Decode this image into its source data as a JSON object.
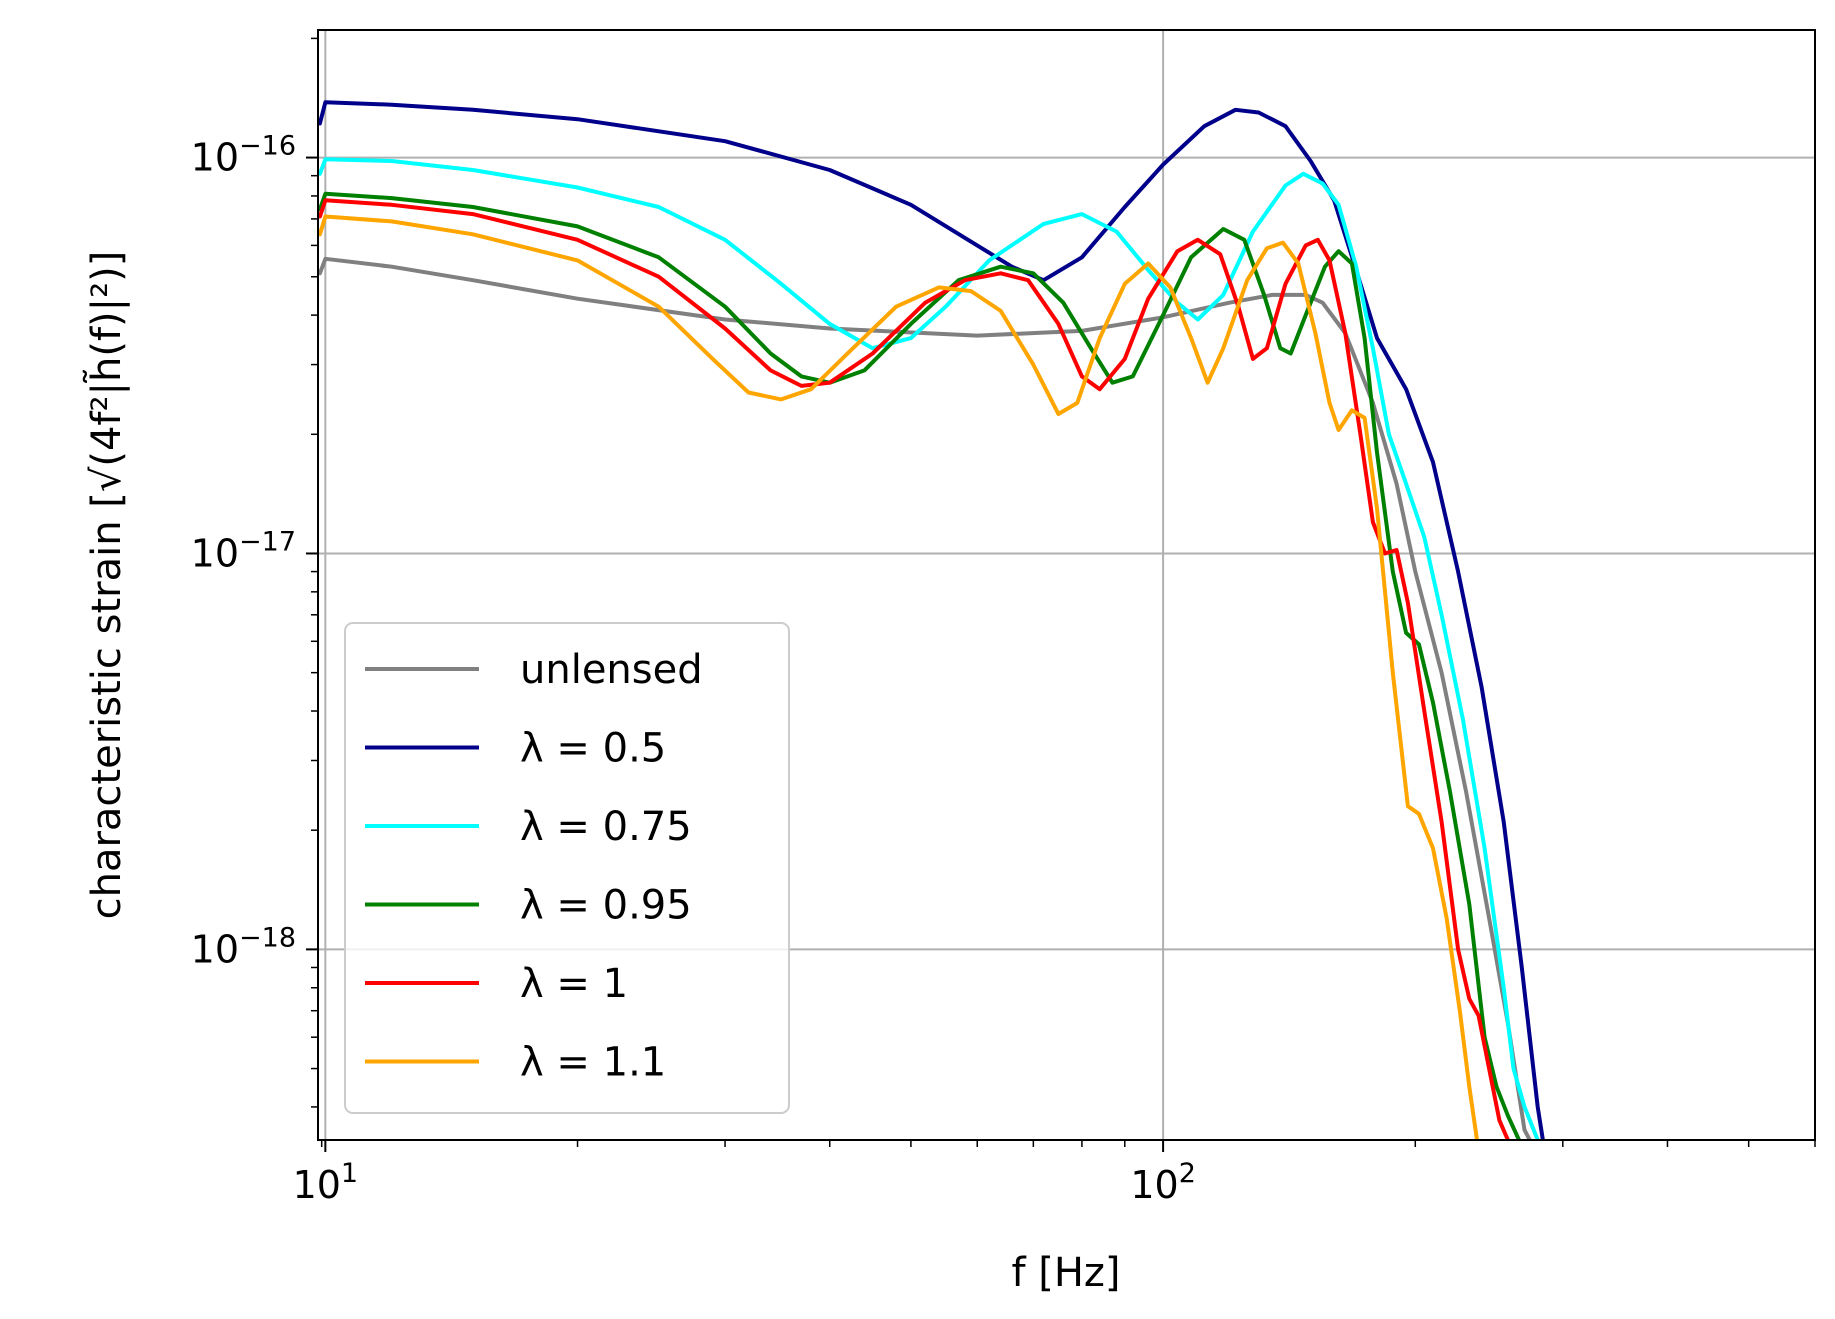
{
  "chart_data": {
    "type": "line",
    "xscale": "log",
    "yscale": "log",
    "xlim": [
      9.8,
      600
    ],
    "ylim": [
      3.3e-19,
      2.1e-16
    ],
    "grid": true,
    "xlabel": "f [Hz]",
    "ylabel": "characteristic strain [√(4f²|h̃(f)|²)]",
    "x_ticks": [
      {
        "value": 10,
        "base": "10",
        "exp": "1"
      },
      {
        "value": 100,
        "base": "10",
        "exp": "2"
      }
    ],
    "y_ticks": [
      {
        "value": 1e-16,
        "base": "10",
        "exp": "−16"
      },
      {
        "value": 1e-17,
        "base": "10",
        "exp": "−17"
      },
      {
        "value": 1e-18,
        "base": "10",
        "exp": "−18"
      }
    ],
    "legend_position": "lower-left",
    "series": [
      {
        "name": "unlensed",
        "color": "#808080",
        "points": [
          [
            9.85,
            5.1e-17
          ],
          [
            10,
            5.55e-17
          ],
          [
            12,
            5.3e-17
          ],
          [
            15,
            4.9e-17
          ],
          [
            20,
            4.4e-17
          ],
          [
            30,
            3.9e-17
          ],
          [
            40,
            3.7e-17
          ],
          [
            60,
            3.55e-17
          ],
          [
            80,
            3.65e-17
          ],
          [
            100,
            3.95e-17
          ],
          [
            120,
            4.3e-17
          ],
          [
            135,
            4.5e-17
          ],
          [
            148,
            4.5e-17
          ],
          [
            155,
            4.3e-17
          ],
          [
            165,
            3.6e-17
          ],
          [
            178,
            2.4e-17
          ],
          [
            190,
            1.5e-17
          ],
          [
            200,
            9e-18
          ],
          [
            215,
            5e-18
          ],
          [
            230,
            2.5e-18
          ],
          [
            245,
            1.2e-18
          ],
          [
            258,
            6.5e-19
          ],
          [
            270,
            3.5e-19
          ],
          [
            274,
            3.3e-19
          ]
        ]
      },
      {
        "name": "λ = 0.5",
        "color": "#00008b",
        "points": [
          [
            9.85,
            1.22e-16
          ],
          [
            10,
            1.38e-16
          ],
          [
            12,
            1.36e-16
          ],
          [
            15,
            1.32e-16
          ],
          [
            20,
            1.25e-16
          ],
          [
            30,
            1.1e-16
          ],
          [
            40,
            9.3e-17
          ],
          [
            50,
            7.6e-17
          ],
          [
            60,
            6e-17
          ],
          [
            66,
            5.3e-17
          ],
          [
            72,
            4.9e-17
          ],
          [
            80,
            5.6e-17
          ],
          [
            90,
            7.5e-17
          ],
          [
            100,
            9.6e-17
          ],
          [
            112,
            1.2e-16
          ],
          [
            122,
            1.32e-16
          ],
          [
            130,
            1.3e-16
          ],
          [
            140,
            1.2e-16
          ],
          [
            150,
            9.8e-17
          ],
          [
            160,
            7.8e-17
          ],
          [
            170,
            5.2e-17
          ],
          [
            180,
            3.5e-17
          ],
          [
            195,
            2.6e-17
          ],
          [
            210,
            1.7e-17
          ],
          [
            225,
            9e-18
          ],
          [
            240,
            4.6e-18
          ],
          [
            255,
            2.1e-18
          ],
          [
            268,
            9e-19
          ],
          [
            280,
            4e-19
          ],
          [
            284,
            3.3e-19
          ]
        ]
      },
      {
        "name": "λ = 0.75",
        "color": "#00ffff",
        "points": [
          [
            9.85,
            9.1e-17
          ],
          [
            10,
            9.9e-17
          ],
          [
            12,
            9.8e-17
          ],
          [
            15,
            9.3e-17
          ],
          [
            20,
            8.4e-17
          ],
          [
            25,
            7.5e-17
          ],
          [
            30,
            6.2e-17
          ],
          [
            35,
            4.8e-17
          ],
          [
            40,
            3.8e-17
          ],
          [
            45,
            3.3e-17
          ],
          [
            50,
            3.5e-17
          ],
          [
            55,
            4.2e-17
          ],
          [
            62,
            5.5e-17
          ],
          [
            72,
            6.8e-17
          ],
          [
            80,
            7.2e-17
          ],
          [
            88,
            6.5e-17
          ],
          [
            96,
            5.2e-17
          ],
          [
            104,
            4.3e-17
          ],
          [
            110,
            3.9e-17
          ],
          [
            118,
            4.5e-17
          ],
          [
            128,
            6.5e-17
          ],
          [
            140,
            8.5e-17
          ],
          [
            147,
            9.1e-17
          ],
          [
            155,
            8.6e-17
          ],
          [
            162,
            7.6e-17
          ],
          [
            170,
            5.3e-17
          ],
          [
            178,
            3.3e-17
          ],
          [
            186,
            2e-17
          ],
          [
            195,
            1.5e-17
          ],
          [
            205,
            1.1e-17
          ],
          [
            215,
            7e-18
          ],
          [
            228,
            3.8e-18
          ],
          [
            242,
            1.8e-18
          ],
          [
            255,
            8e-19
          ],
          [
            262,
            5e-19
          ],
          [
            270,
            4e-19
          ],
          [
            280,
            3.3e-19
          ]
        ]
      },
      {
        "name": "λ = 0.95",
        "color": "#008000",
        "points": [
          [
            9.85,
            7.4e-17
          ],
          [
            10,
            8.1e-17
          ],
          [
            12,
            7.9e-17
          ],
          [
            15,
            7.5e-17
          ],
          [
            20,
            6.7e-17
          ],
          [
            25,
            5.6e-17
          ],
          [
            30,
            4.2e-17
          ],
          [
            34,
            3.2e-17
          ],
          [
            37,
            2.8e-17
          ],
          [
            40,
            2.7e-17
          ],
          [
            44,
            2.9e-17
          ],
          [
            50,
            3.8e-17
          ],
          [
            57,
            4.9e-17
          ],
          [
            64,
            5.3e-17
          ],
          [
            70,
            5.1e-17
          ],
          [
            76,
            4.3e-17
          ],
          [
            82,
            3.3e-17
          ],
          [
            87,
            2.7e-17
          ],
          [
            92,
            2.8e-17
          ],
          [
            100,
            4e-17
          ],
          [
            108,
            5.6e-17
          ],
          [
            118,
            6.6e-17
          ],
          [
            125,
            6.2e-17
          ],
          [
            132,
            4.5e-17
          ],
          [
            138,
            3.3e-17
          ],
          [
            142,
            3.2e-17
          ],
          [
            148,
            4e-17
          ],
          [
            156,
            5.3e-17
          ],
          [
            162,
            5.8e-17
          ],
          [
            168,
            5.4e-17
          ],
          [
            174,
            3.5e-17
          ],
          [
            180,
            1.8e-17
          ],
          [
            188,
            9e-18
          ],
          [
            195,
            6.3e-18
          ],
          [
            202,
            5.9e-18
          ],
          [
            210,
            4.2e-18
          ],
          [
            220,
            2.5e-18
          ],
          [
            232,
            1.3e-18
          ],
          [
            242,
            6e-19
          ],
          [
            250,
            4.5e-19
          ],
          [
            258,
            3.8e-19
          ],
          [
            266,
            3.3e-19
          ]
        ]
      },
      {
        "name": "λ = 1",
        "color": "#ff0000",
        "points": [
          [
            9.85,
            7.1e-17
          ],
          [
            10,
            7.8e-17
          ],
          [
            12,
            7.6e-17
          ],
          [
            15,
            7.2e-17
          ],
          [
            20,
            6.2e-17
          ],
          [
            25,
            5e-17
          ],
          [
            30,
            3.7e-17
          ],
          [
            34,
            2.9e-17
          ],
          [
            37,
            2.65e-17
          ],
          [
            40,
            2.7e-17
          ],
          [
            45,
            3.2e-17
          ],
          [
            52,
            4.3e-17
          ],
          [
            58,
            4.9e-17
          ],
          [
            64,
            5.1e-17
          ],
          [
            69,
            4.9e-17
          ],
          [
            75,
            3.8e-17
          ],
          [
            80,
            2.8e-17
          ],
          [
            84,
            2.6e-17
          ],
          [
            90,
            3.1e-17
          ],
          [
            96,
            4.4e-17
          ],
          [
            104,
            5.8e-17
          ],
          [
            110,
            6.2e-17
          ],
          [
            117,
            5.7e-17
          ],
          [
            123,
            4.2e-17
          ],
          [
            128,
            3.1e-17
          ],
          [
            133,
            3.3e-17
          ],
          [
            140,
            4.8e-17
          ],
          [
            148,
            6e-17
          ],
          [
            153,
            6.2e-17
          ],
          [
            158,
            5.5e-17
          ],
          [
            165,
            3.6e-17
          ],
          [
            172,
            2e-17
          ],
          [
            178,
            1.2e-17
          ],
          [
            184,
            1e-17
          ],
          [
            190,
            1.02e-17
          ],
          [
            196,
            7.5e-18
          ],
          [
            205,
            4e-18
          ],
          [
            215,
            2.1e-18
          ],
          [
            225,
            1e-18
          ],
          [
            232,
            7.5e-19
          ],
          [
            238,
            6.8e-19
          ],
          [
            245,
            5e-19
          ],
          [
            252,
            3.7e-19
          ],
          [
            258,
            3.3e-19
          ]
        ]
      },
      {
        "name": "λ = 1.1",
        "color": "#ffa500",
        "points": [
          [
            9.85,
            6.4e-17
          ],
          [
            10,
            7.1e-17
          ],
          [
            12,
            6.9e-17
          ],
          [
            15,
            6.4e-17
          ],
          [
            20,
            5.5e-17
          ],
          [
            25,
            4.2e-17
          ],
          [
            29,
            3.1e-17
          ],
          [
            32,
            2.55e-17
          ],
          [
            35,
            2.45e-17
          ],
          [
            38,
            2.6e-17
          ],
          [
            42,
            3.2e-17
          ],
          [
            48,
            4.2e-17
          ],
          [
            54,
            4.7e-17
          ],
          [
            59,
            4.6e-17
          ],
          [
            64,
            4.1e-17
          ],
          [
            70,
            3e-17
          ],
          [
            75,
            2.25e-17
          ],
          [
            79,
            2.4e-17
          ],
          [
            84,
            3.5e-17
          ],
          [
            90,
            4.8e-17
          ],
          [
            96,
            5.4e-17
          ],
          [
            102,
            4.7e-17
          ],
          [
            108,
            3.5e-17
          ],
          [
            113,
            2.7e-17
          ],
          [
            118,
            3.3e-17
          ],
          [
            126,
            4.9e-17
          ],
          [
            133,
            5.9e-17
          ],
          [
            139,
            6.1e-17
          ],
          [
            145,
            5.4e-17
          ],
          [
            152,
            3.6e-17
          ],
          [
            158,
            2.4e-17
          ],
          [
            162,
            2.05e-17
          ],
          [
            168,
            2.3e-17
          ],
          [
            174,
            2.2e-17
          ],
          [
            180,
            1.3e-17
          ],
          [
            188,
            5e-18
          ],
          [
            196,
            2.3e-18
          ],
          [
            202,
            2.2e-18
          ],
          [
            210,
            1.8e-18
          ],
          [
            218,
            1.2e-18
          ],
          [
            226,
            7e-19
          ],
          [
            232,
            4.5e-19
          ],
          [
            237,
            3.3e-19
          ]
        ]
      }
    ]
  }
}
